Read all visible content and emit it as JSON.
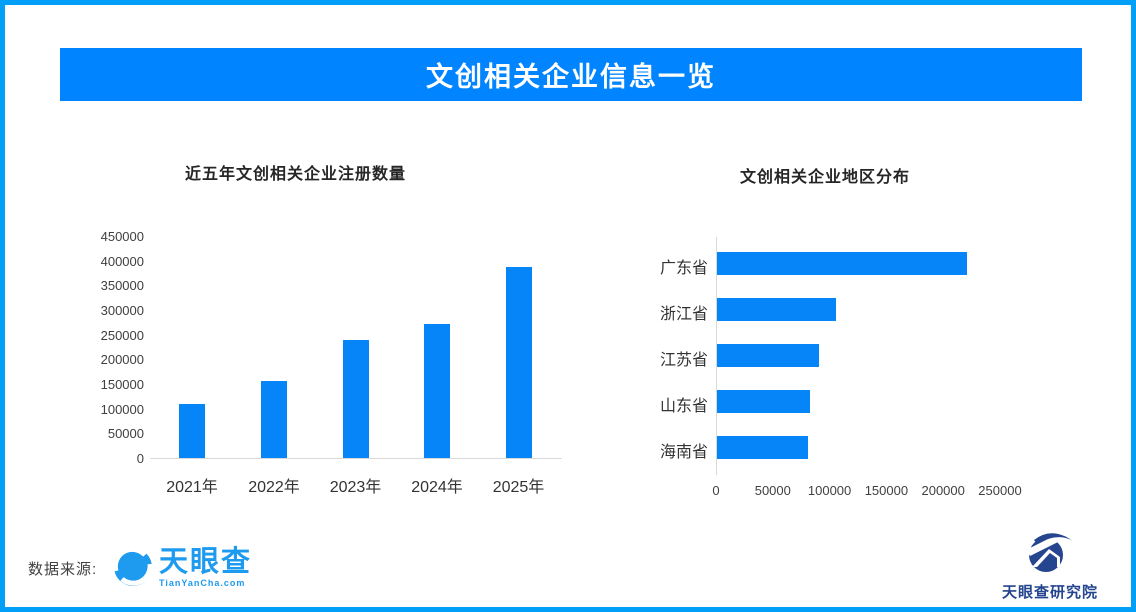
{
  "header": {
    "title": "文创相关企业信息一览"
  },
  "colors": {
    "border": "#019FF8",
    "header_band": "#0084FF",
    "bar": "#0685F9",
    "axis_line": "#D9D9D9",
    "tianyancha_blue": "#1E9BEF",
    "research_navy": "#26458F"
  },
  "chart_data": [
    {
      "type": "bar",
      "orientation": "vertical",
      "title": "近五年文创相关企业注册数量",
      "categories": [
        "2021年",
        "2022年",
        "2023年",
        "2024年",
        "2025年"
      ],
      "values": [
        110000,
        157000,
        240000,
        272000,
        388000
      ],
      "xlabel": "",
      "ylabel": "",
      "ylim": [
        0,
        450000
      ],
      "ytick_interval": 50000,
      "grid": false,
      "legend": false
    },
    {
      "type": "bar",
      "orientation": "horizontal",
      "title": "文创相关企业地区分布",
      "categories": [
        "广东省",
        "浙江省",
        "江苏省",
        "山东省",
        "海南省"
      ],
      "values": [
        220000,
        105000,
        90000,
        82000,
        80000
      ],
      "xlabel": "",
      "ylabel": "",
      "xlim": [
        0,
        250000
      ],
      "xtick_interval": 50000,
      "grid": false,
      "legend": false
    }
  ],
  "footer": {
    "source_label": "数据来源:",
    "tianyancha_name": "天眼查",
    "tianyancha_domain": "TianYanCha.com",
    "research_name": "天眼查研究院"
  }
}
